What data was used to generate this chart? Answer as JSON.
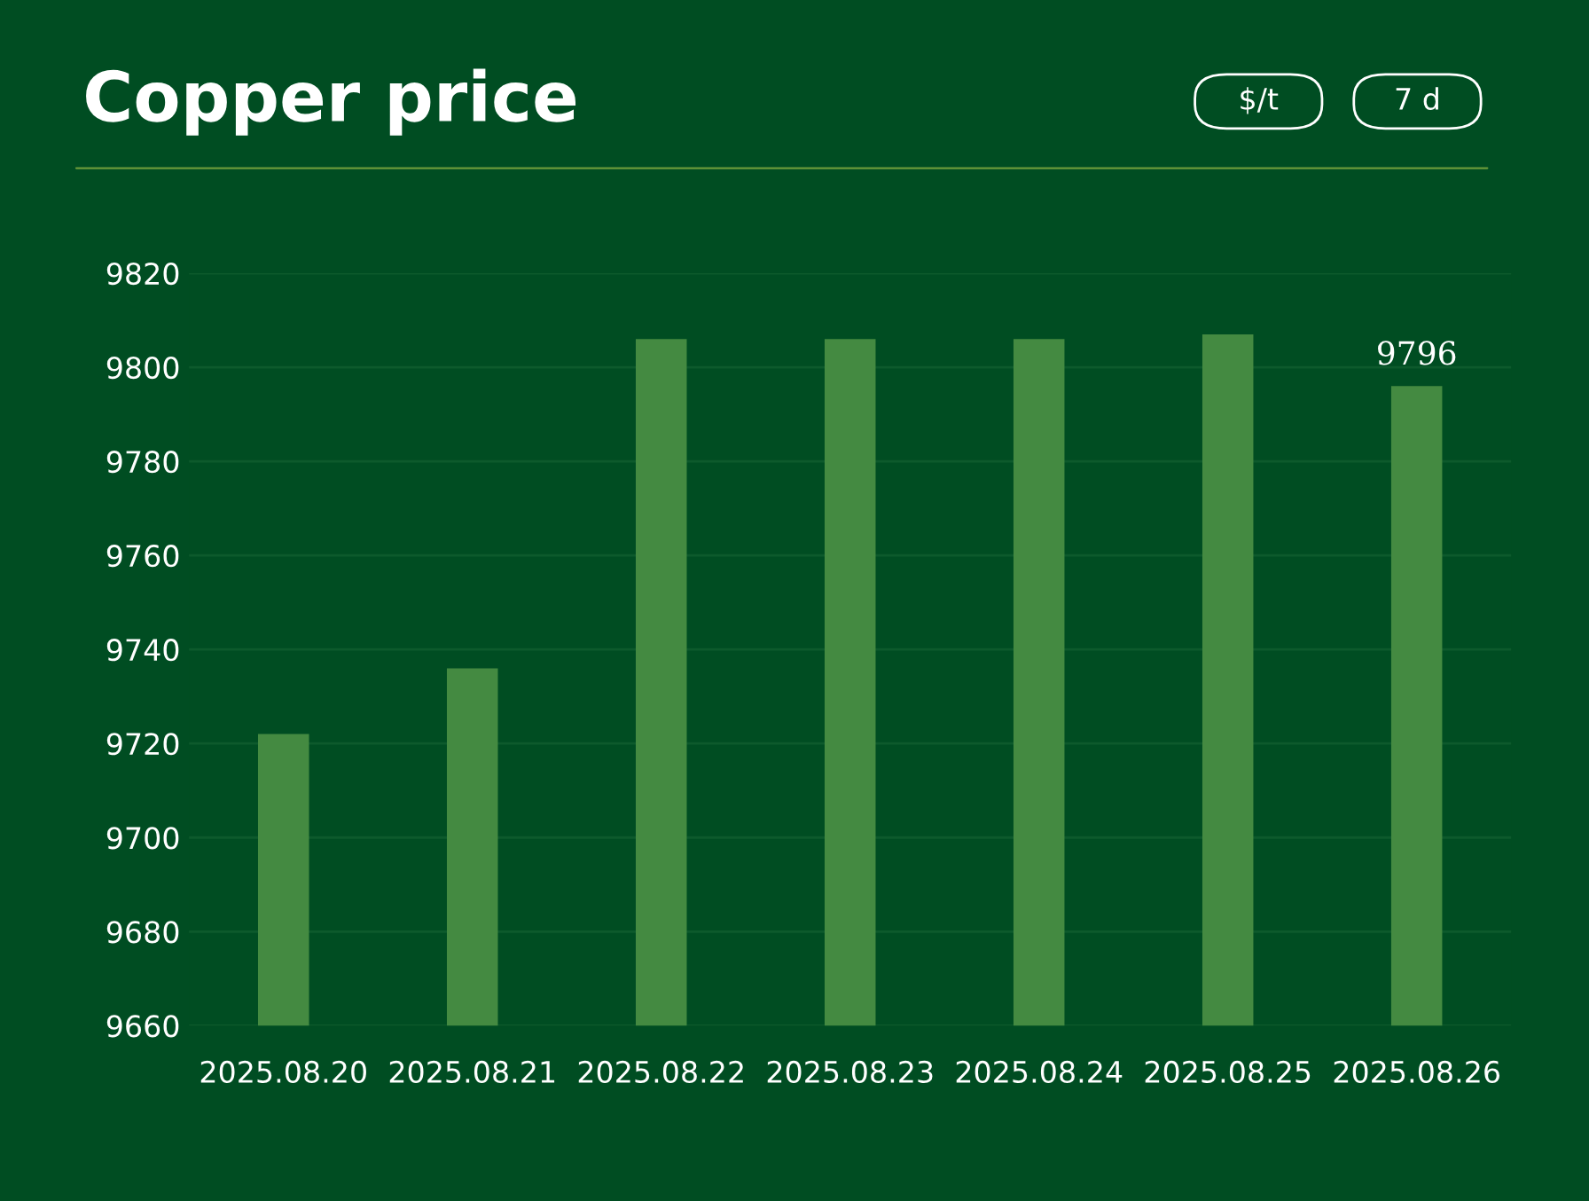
{
  "chart_data": {
    "type": "bar",
    "title": "Copper price",
    "categories": [
      "2025.08.20",
      "2025.08.21",
      "2025.08.22",
      "2025.08.23",
      "2025.08.24",
      "2025.08.25",
      "2025.08.26"
    ],
    "values": [
      9722,
      9736,
      9806,
      9806,
      9806,
      9807,
      9796
    ],
    "value_labels": [
      null,
      null,
      null,
      null,
      null,
      null,
      "9796"
    ],
    "color": "#448a41",
    "ylim": [
      9660,
      9820
    ],
    "yticks": [
      9660,
      9680,
      9700,
      9720,
      9740,
      9760,
      9780,
      9800,
      9820
    ],
    "grid": "y",
    "annotations": [
      "$/t",
      "7 d"
    ]
  }
}
